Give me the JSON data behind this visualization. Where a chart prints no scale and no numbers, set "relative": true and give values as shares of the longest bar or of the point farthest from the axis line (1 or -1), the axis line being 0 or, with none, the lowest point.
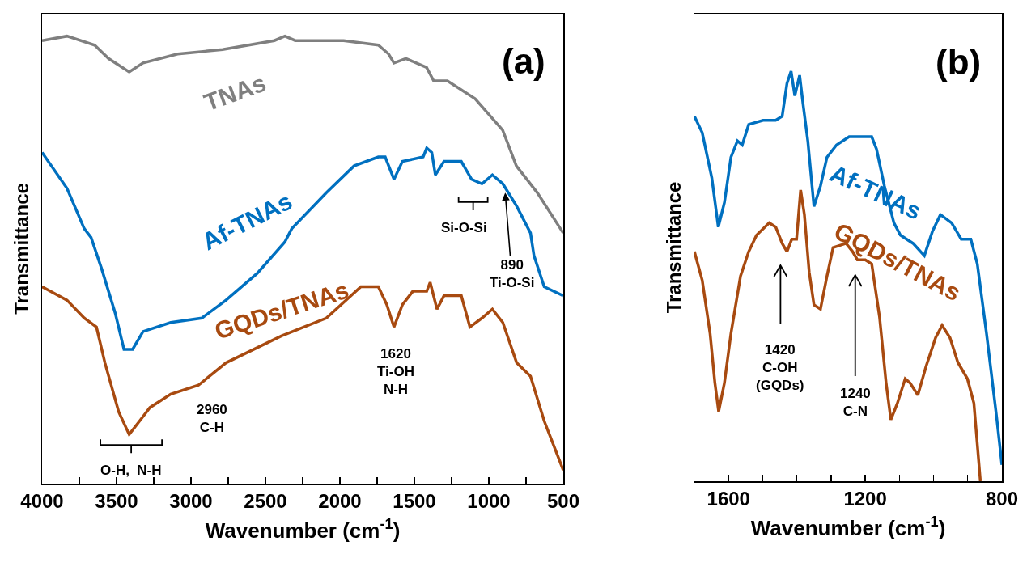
{
  "chart_data": [
    {
      "type": "line",
      "xlabel": "Wavenumber (cm$^{-1}$)",
      "ylabel": "Transmittance",
      "relative": true,
      "legend": false,
      "grid": false,
      "xlim": [
        4000,
        500
      ],
      "xticks": [
        4000,
        {
          "value": 3750,
          "label": null
        },
        3500,
        {
          "value": 3250,
          "label": null
        },
        3000,
        {
          "value": 2750,
          "label": null
        },
        2500,
        {
          "value": 2250,
          "label": null
        },
        2000,
        {
          "value": 1750,
          "label": null
        },
        1500,
        {
          "value": 1250,
          "label": null
        },
        1000,
        {
          "value": 750,
          "label": null
        },
        500
      ],
      "series": [
        {
          "name": "TNAs",
          "color": "#7f7f7f",
          "x": [
            4000,
            3833,
            3647,
            3554,
            3415,
            3322,
            3090,
            2788,
            2440,
            2369,
            2300,
            1975,
            1742,
            1673,
            1637,
            1557,
            1418,
            1370,
            1278,
            1092,
            907,
            815,
            674,
            500
          ],
          "values": [
            0.99,
            1.0,
            0.98,
            0.95,
            0.92,
            0.94,
            0.96,
            0.97,
            0.99,
            1.0,
            0.99,
            0.99,
            0.98,
            0.96,
            0.94,
            0.95,
            0.93,
            0.9,
            0.9,
            0.86,
            0.79,
            0.71,
            0.65,
            0.56
          ]
        },
        {
          "name": "Af-TNAs",
          "color": "#0070c0",
          "x": [
            4000,
            3833,
            3717,
            3671,
            3600,
            3508,
            3450,
            3392,
            3322,
            3136,
            2927,
            2765,
            2555,
            2370,
            2323,
            2091,
            1905,
            1742,
            1696,
            1637,
            1580,
            1441,
            1417,
            1383,
            1359,
            1301,
            1185,
            1116,
            1046,
            976,
            906,
            813,
            720,
            697,
            628,
            500
          ],
          "values": [
            0.74,
            0.66,
            0.57,
            0.55,
            0.48,
            0.38,
            0.3,
            0.3,
            0.34,
            0.36,
            0.37,
            0.41,
            0.47,
            0.54,
            0.57,
            0.65,
            0.71,
            0.73,
            0.73,
            0.68,
            0.72,
            0.73,
            0.75,
            0.74,
            0.69,
            0.72,
            0.72,
            0.68,
            0.67,
            0.69,
            0.67,
            0.62,
            0.56,
            0.51,
            0.44,
            0.42
          ]
        },
        {
          "name": "GQDs/TNAs",
          "color": "#a84a10",
          "x": [
            4000,
            3833,
            3717,
            3635,
            3578,
            3485,
            3415,
            3345,
            3276,
            3136,
            2950,
            2765,
            2393,
            2091,
            1859,
            1742,
            1685,
            1637,
            1580,
            1510,
            1417,
            1394,
            1348,
            1301,
            1185,
            1127,
            1046,
            976,
            906,
            813,
            720,
            628,
            500
          ],
          "values": [
            0.44,
            0.41,
            0.37,
            0.35,
            0.27,
            0.16,
            0.11,
            0.14,
            0.17,
            0.2,
            0.22,
            0.27,
            0.33,
            0.37,
            0.44,
            0.44,
            0.4,
            0.35,
            0.4,
            0.43,
            0.43,
            0.45,
            0.39,
            0.42,
            0.42,
            0.35,
            0.37,
            0.39,
            0.36,
            0.27,
            0.24,
            0.14,
            0.03
          ]
        }
      ],
      "annotations": [
        "(a)",
        "Si-O-Si",
        {
          "text": "890\nTi-O-Si",
          "x": 890,
          "y": 0.65
        },
        "2960\nC-H",
        "1620\nTi-OH\nN-H",
        "O-H,  N-H"
      ]
    },
    {
      "type": "line",
      "xlabel": "Wavenumber (cm$^{-1}$)",
      "ylabel": "Transmittance",
      "relative": true,
      "legend": false,
      "grid": false,
      "xlim": [
        1700,
        800
      ],
      "xticks": [
        1600,
        {
          "value": 1500,
          "label": null
        },
        {
          "value": 1400,
          "label": null
        },
        {
          "value": 1300,
          "label": null
        },
        1200,
        {
          "value": 1100,
          "label": null
        },
        {
          "value": 1000,
          "label": null
        },
        {
          "value": 900,
          "label": null
        },
        800
      ],
      "series": [
        {
          "name": "Af-TNAs",
          "color": "#0070c0",
          "x": [
            1700,
            1677,
            1649,
            1630,
            1612,
            1593,
            1574,
            1560,
            1541,
            1499,
            1462,
            1443,
            1429,
            1417,
            1406,
            1392,
            1382,
            1368,
            1350,
            1331,
            1312,
            1284,
            1247,
            1181,
            1167,
            1144,
            1116,
            1097,
            1060,
            1027,
            1003,
            980,
            947,
            919,
            891,
            872,
            845,
            816,
            800
          ],
          "values": [
            0.89,
            0.85,
            0.74,
            0.62,
            0.68,
            0.79,
            0.83,
            0.82,
            0.87,
            0.88,
            0.88,
            0.89,
            0.97,
            1.0,
            0.94,
            0.99,
            0.92,
            0.83,
            0.67,
            0.72,
            0.79,
            0.82,
            0.84,
            0.84,
            0.81,
            0.72,
            0.63,
            0.6,
            0.58,
            0.55,
            0.61,
            0.65,
            0.63,
            0.59,
            0.59,
            0.53,
            0.36,
            0.16,
            0.04
          ]
        },
        {
          "name": "GQDs/TNAs",
          "color": "#a84a10",
          "x": [
            1700,
            1677,
            1654,
            1640,
            1629,
            1612,
            1593,
            1565,
            1541,
            1518,
            1481,
            1462,
            1443,
            1429,
            1415,
            1401,
            1389,
            1378,
            1364,
            1350,
            1331,
            1312,
            1294,
            1256,
            1237,
            1223,
            1200,
            1181,
            1158,
            1139,
            1125,
            1106,
            1083,
            1069,
            1046,
            1022,
            994,
            975,
            952,
            929,
            901,
            882,
            863
          ],
          "values": [
            0.56,
            0.49,
            0.36,
            0.24,
            0.17,
            0.24,
            0.36,
            0.5,
            0.56,
            0.6,
            0.63,
            0.62,
            0.58,
            0.56,
            0.59,
            0.59,
            0.71,
            0.65,
            0.51,
            0.43,
            0.42,
            0.5,
            0.57,
            0.58,
            0.56,
            0.54,
            0.54,
            0.53,
            0.4,
            0.24,
            0.15,
            0.19,
            0.25,
            0.24,
            0.21,
            0.28,
            0.35,
            0.38,
            0.35,
            0.29,
            0.25,
            0.19,
            0.0
          ]
        }
      ],
      "annotations": [
        "(b)",
        "1420\nC-OH\n(GQDs)",
        "1240\nC-N"
      ]
    }
  ]
}
